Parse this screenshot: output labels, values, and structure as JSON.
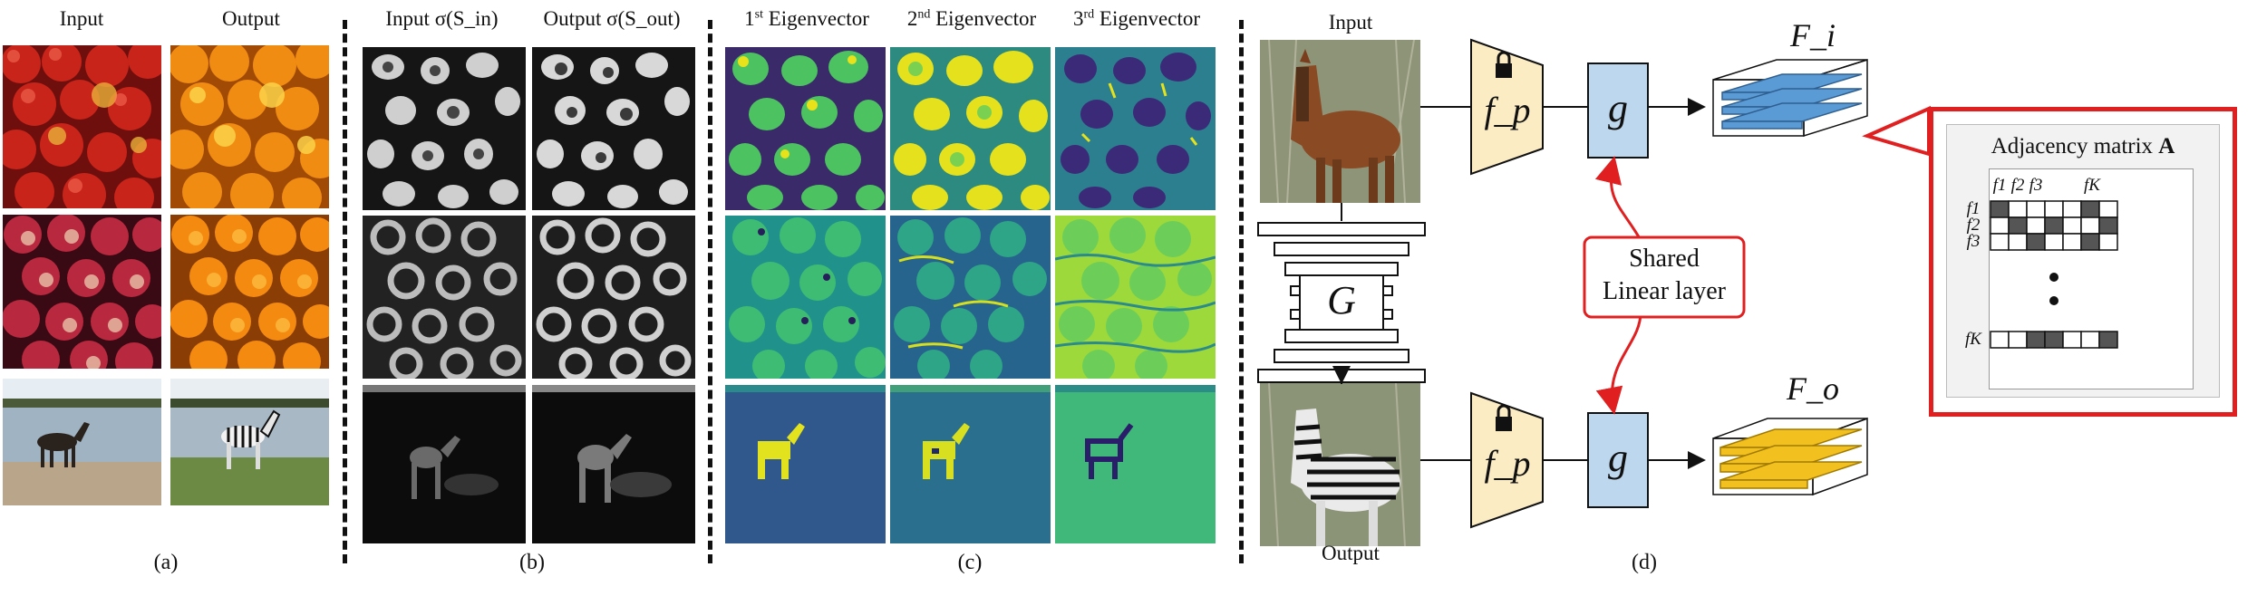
{
  "panel_a": {
    "col_input": "Input",
    "col_output": "Output",
    "caption": "(a)"
  },
  "panel_b": {
    "col_input": "Input σ(S_in)",
    "col_output": "Output σ(S_out)",
    "caption": "(b)"
  },
  "panel_c": {
    "col1_num": "1",
    "col1_sup": "st",
    "col1_rest": "Eigenvector",
    "col2_num": "2",
    "col2_sup": "nd",
    "col2_rest": "Eigenvector",
    "col3_num": "3",
    "col3_sup": "rd",
    "col3_rest": "Eigenvector",
    "caption": "(c)"
  },
  "panel_d": {
    "input_label": "Input",
    "output_label": "Output",
    "generator": "G",
    "projector": "f_p",
    "linear": "g",
    "feature_in": "F_i",
    "feature_out": "F_o",
    "shared_line1": "Shared",
    "shared_line2": "Linear layer",
    "adjacency_title": "Adjacency matrix",
    "adjacency_bold": "A",
    "matrix_col_labels": [
      "f1",
      "f2",
      "f3",
      "fK"
    ],
    "matrix_row_labels": [
      "f1",
      "f2",
      "f3",
      "fK"
    ],
    "caption": "(d)"
  },
  "colors": {
    "projector_fill": "#fbecc4",
    "linear_fill": "#bcd7ee",
    "feature_in_bar": "#5b9bd5",
    "feature_out_bar": "#f2c01f",
    "highlight_red": "#e02020"
  }
}
